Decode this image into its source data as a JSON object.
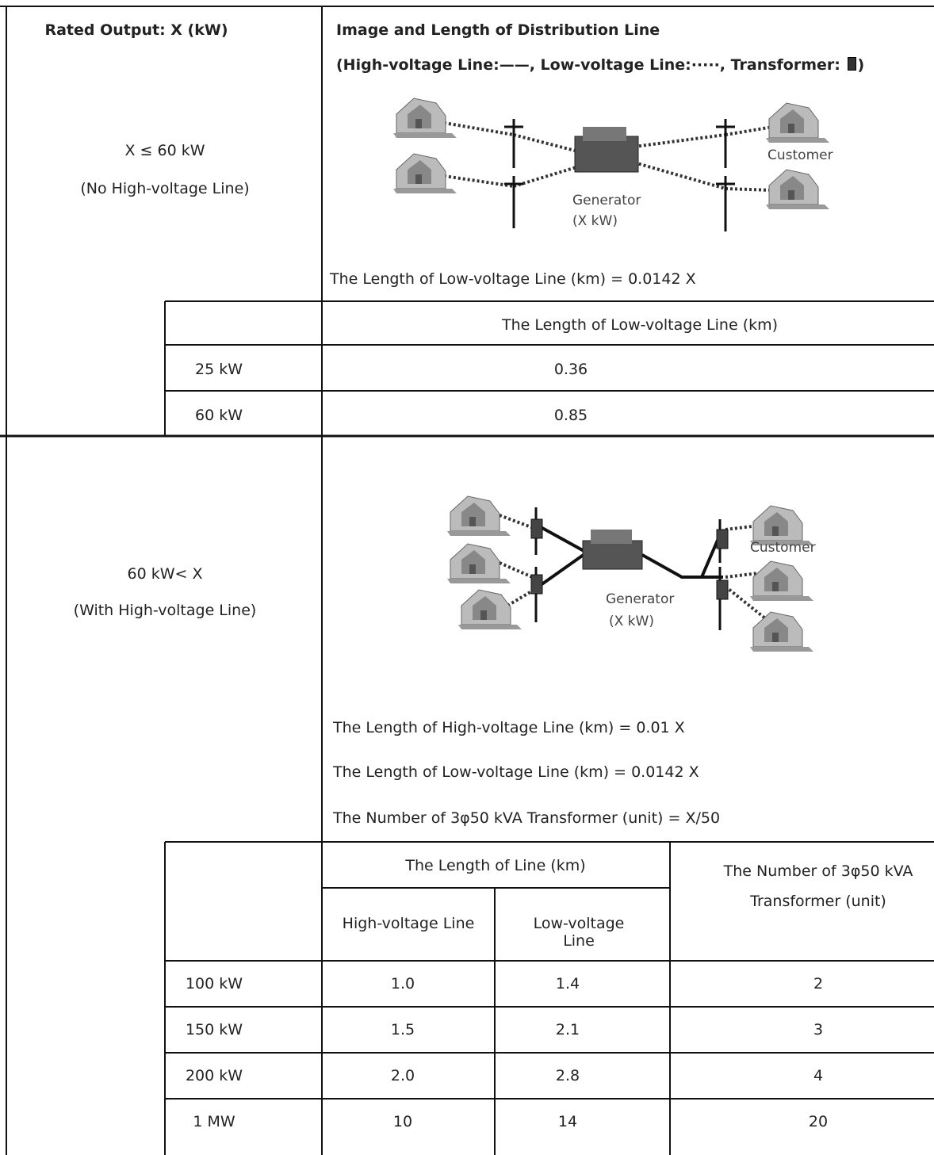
{
  "header": {
    "left": "Rated Output: X (kW)",
    "right_title": "Image and Length of Distribution Line",
    "legend": "(High-voltage Line:——, Low-voltage Line:·····, Transformer:",
    "legend_close": ")"
  },
  "sections": [
    {
      "condition": "X ≤ 60 kW",
      "note": "(No High-voltage Line)",
      "diagram": {
        "customer": "Customer",
        "generator": "Generator",
        "generator_rating": "(X kW)"
      },
      "formulas": [
        "The Length of Low-voltage Line (km) = 0.0142 X"
      ],
      "table": {
        "header": "The Length of Low-voltage Line (km)",
        "rows": [
          [
            "25 kW",
            "0.36"
          ],
          [
            "60 kW",
            "0.85"
          ]
        ]
      }
    },
    {
      "condition": "60 kW< X",
      "note": "(With High-voltage Line)",
      "diagram": {
        "customer": "Customer",
        "generator": "Generator",
        "generator_rating": "(X kW)"
      },
      "formulas": [
        "The Length of High-voltage Line (km) = 0.01 X",
        "The Length of Low-voltage Line (km) = 0.0142 X",
        "The Number of 3φ50 kVA Transformer (unit) = X/50"
      ],
      "table": {
        "group_header": "The Length of Line (km)",
        "sub_headers": [
          "High-voltage Line",
          "Low-voltage Line"
        ],
        "transformer_header": "The Number of 3φ50 kVA Transformer (unit)",
        "rows": [
          [
            "100 kW",
            "1.0",
            "1.4",
            "2"
          ],
          [
            "150 kW",
            "1.5",
            "2.1",
            "3"
          ],
          [
            "200 kW",
            "2.0",
            "2.8",
            "4"
          ],
          [
            "1 MW",
            "10",
            "14",
            "20"
          ]
        ]
      }
    }
  ]
}
